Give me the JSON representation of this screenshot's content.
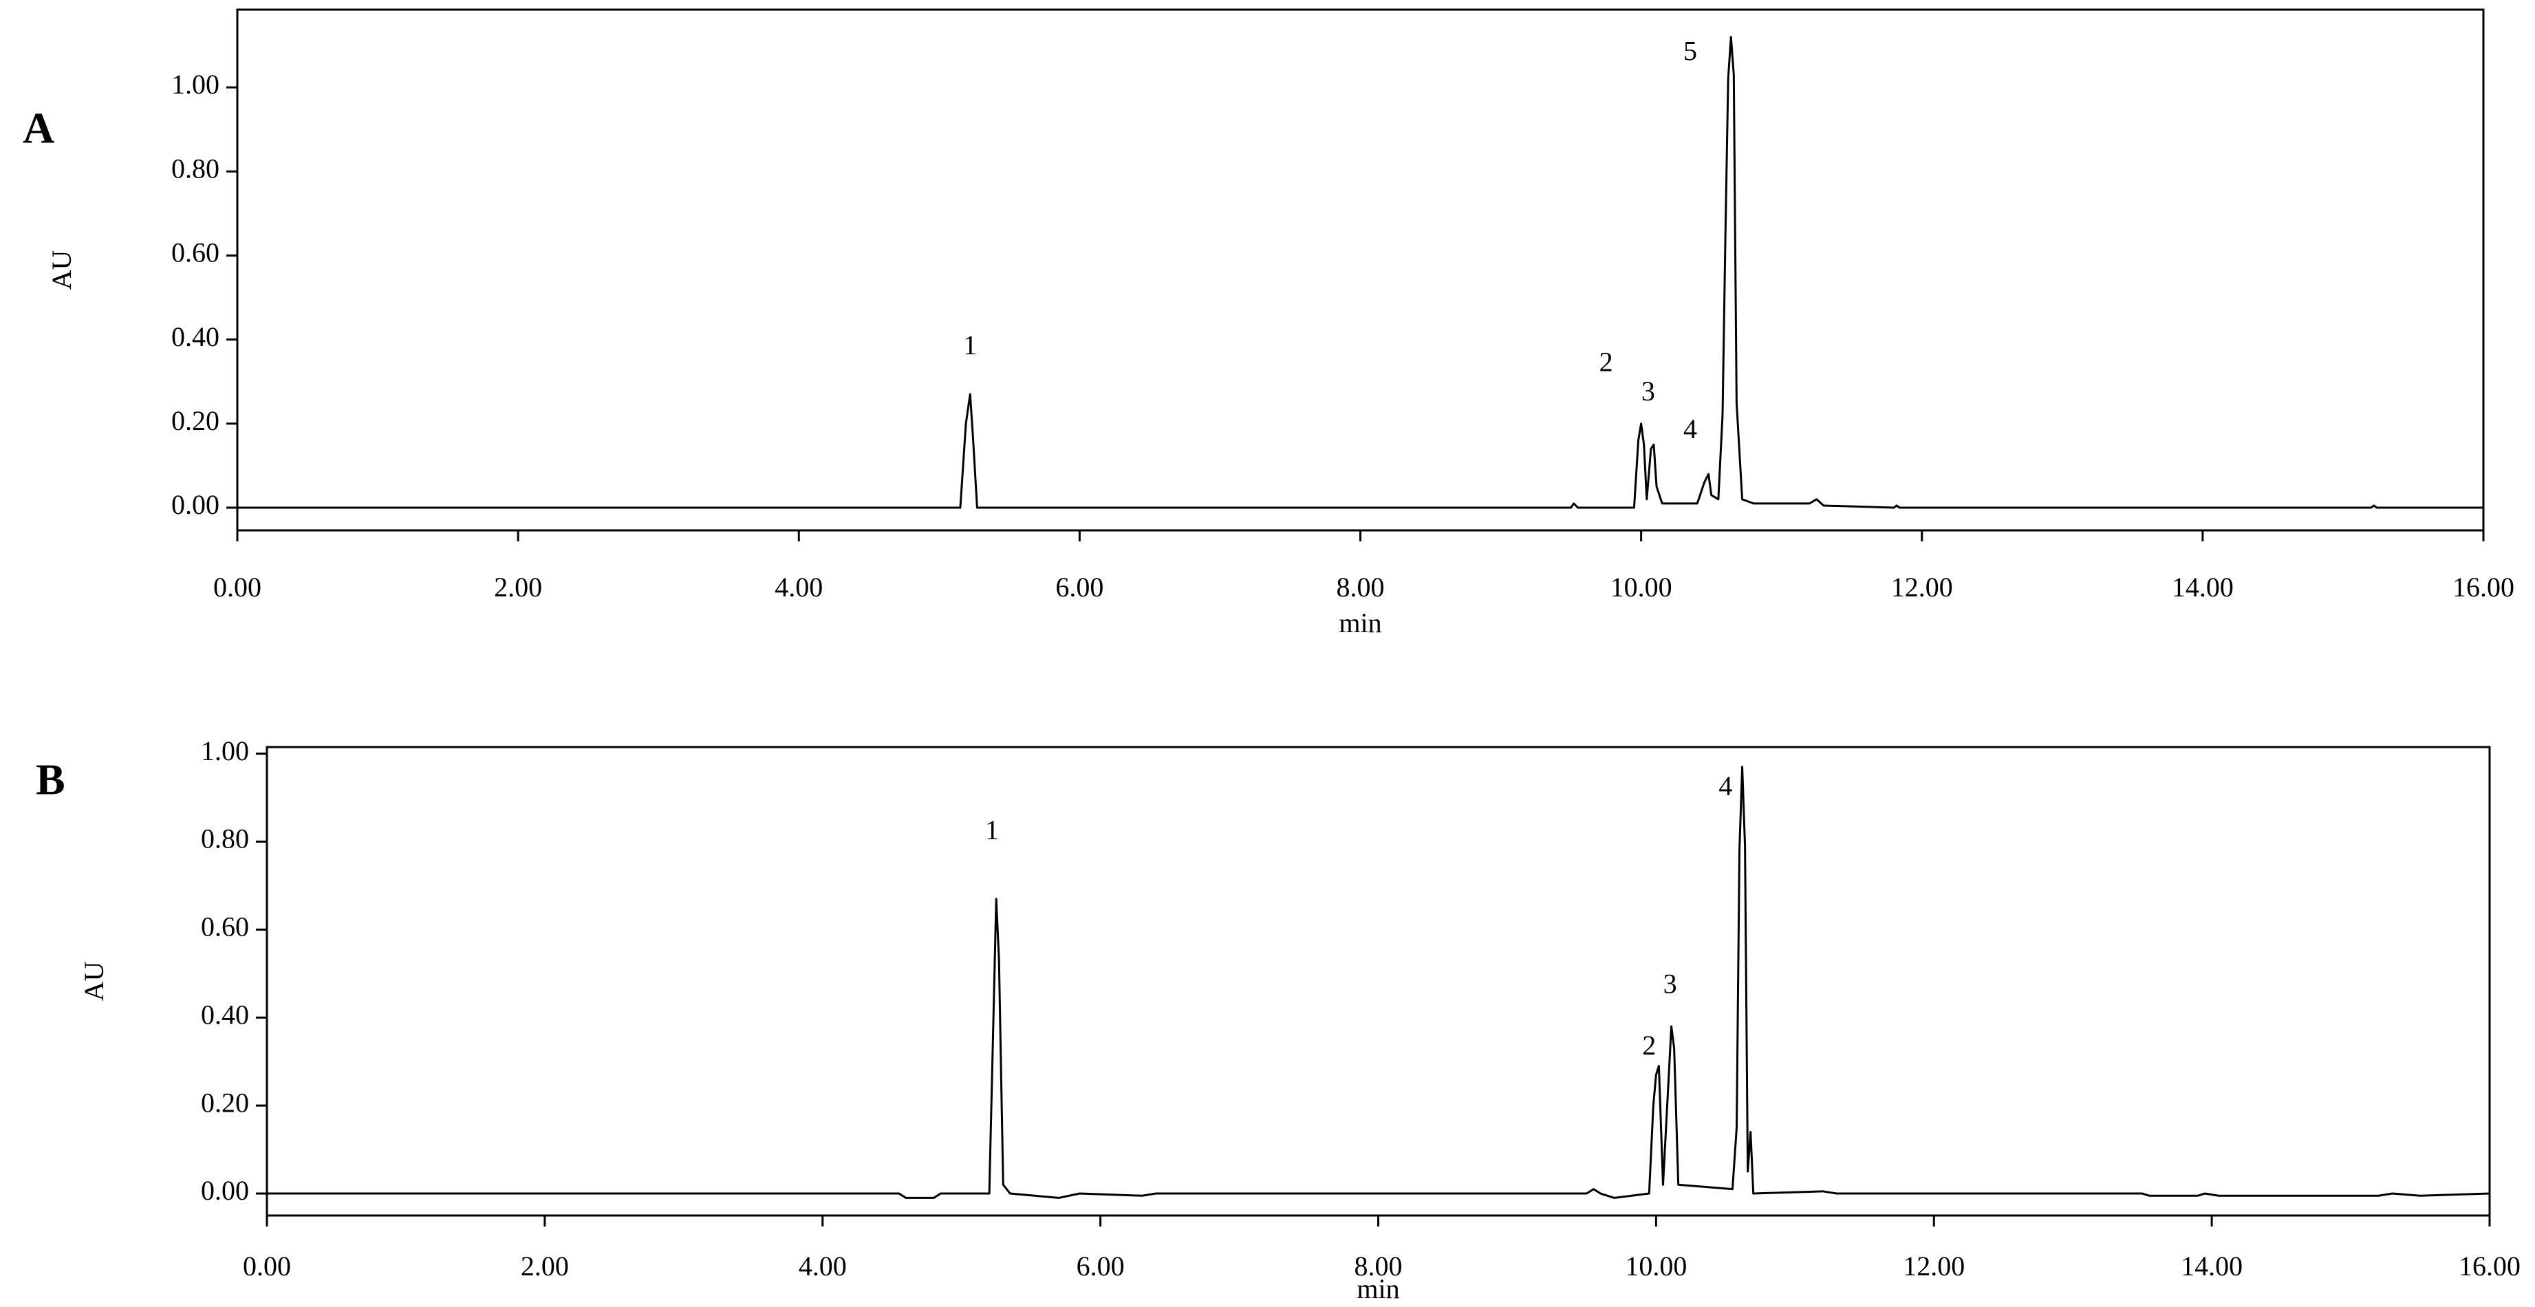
{
  "chart_data": [
    {
      "type": "line",
      "panel_label": "A",
      "xlabel": "min",
      "ylabel": "AU",
      "color": "#000000",
      "xlim": [
        0,
        16
      ],
      "ylim": [
        -0.054,
        1.185
      ],
      "xticks": [
        {
          "value": 0,
          "label": "0.00"
        },
        {
          "value": 2,
          "label": "2.00"
        },
        {
          "value": 4,
          "label": "4.00"
        },
        {
          "value": 6,
          "label": "6.00"
        },
        {
          "value": 8,
          "label": "8.00"
        },
        {
          "value": 10,
          "label": "10.00"
        },
        {
          "value": 12,
          "label": "12.00"
        },
        {
          "value": 14,
          "label": "14.00"
        },
        {
          "value": 16,
          "label": "16.00"
        }
      ],
      "yticks": [
        {
          "value": 0,
          "label": "0.00"
        },
        {
          "value": 0.2,
          "label": "0.20"
        },
        {
          "value": 0.4,
          "label": "0.40"
        },
        {
          "value": 0.6,
          "label": "0.60"
        },
        {
          "value": 0.8,
          "label": "0.80"
        },
        {
          "value": 1,
          "label": "1.00"
        }
      ],
      "x": [
        0,
        5.15,
        5.19,
        5.22,
        5.24,
        5.27,
        9.5,
        9.52,
        9.55,
        9.95,
        9.98,
        10.0,
        10.02,
        10.04,
        10.07,
        10.09,
        10.11,
        10.15,
        10.4,
        10.45,
        10.48,
        10.5,
        10.55,
        10.58,
        10.6,
        10.62,
        10.64,
        10.66,
        10.68,
        10.72,
        10.8,
        11.2,
        11.25,
        11.3,
        11.8,
        11.82,
        11.84,
        15.2,
        15.22,
        15.24,
        16
      ],
      "values": [
        0,
        0,
        0.2,
        0.27,
        0.17,
        0,
        0,
        0.01,
        0,
        0,
        0.16,
        0.2,
        0.15,
        0.02,
        0.14,
        0.15,
        0.05,
        0.01,
        0.01,
        0.06,
        0.08,
        0.03,
        0.02,
        0.22,
        0.64,
        1.02,
        1.12,
        1.03,
        0.25,
        0.02,
        0.01,
        0.01,
        0.02,
        0.005,
        0,
        0.005,
        0,
        0,
        0.005,
        0,
        0
      ],
      "annotations": [
        {
          "text": "1",
          "x": 5.22,
          "y": 0.38
        },
        {
          "text": "2",
          "x": 9.75,
          "y": 0.34
        },
        {
          "text": "3",
          "x": 10.05,
          "y": 0.27
        },
        {
          "text": "4",
          "x": 10.35,
          "y": 0.18
        },
        {
          "text": "5",
          "x": 10.35,
          "y": 1.08
        }
      ]
    },
    {
      "type": "line",
      "panel_label": "B",
      "xlabel": "min",
      "ylabel": "AU",
      "color": "#000000",
      "xlim": [
        0,
        16
      ],
      "ylim": [
        -0.05,
        1.015
      ],
      "xticks": [
        {
          "value": 0,
          "label": "0.00"
        },
        {
          "value": 2,
          "label": "2.00"
        },
        {
          "value": 4,
          "label": "4.00"
        },
        {
          "value": 6,
          "label": "6.00"
        },
        {
          "value": 8,
          "label": "8.00"
        },
        {
          "value": 10,
          "label": "10.00"
        },
        {
          "value": 12,
          "label": "12.00"
        },
        {
          "value": 14,
          "label": "14.00"
        },
        {
          "value": 16,
          "label": "16.00"
        }
      ],
      "yticks": [
        {
          "value": 0,
          "label": "0.00"
        },
        {
          "value": 0.2,
          "label": "0.20"
        },
        {
          "value": 0.4,
          "label": "0.40"
        },
        {
          "value": 0.6,
          "label": "0.60"
        },
        {
          "value": 0.8,
          "label": "0.80"
        },
        {
          "value": 1,
          "label": "1.00"
        }
      ],
      "x": [
        0,
        4.55,
        4.6,
        4.8,
        4.85,
        5.2,
        5.23,
        5.25,
        5.27,
        5.3,
        5.35,
        5.7,
        5.85,
        6.3,
        6.4,
        9.5,
        9.55,
        9.6,
        9.7,
        9.95,
        9.98,
        10.0,
        10.02,
        10.05,
        10.08,
        10.11,
        10.13,
        10.16,
        10.55,
        10.58,
        10.6,
        10.62,
        10.64,
        10.66,
        10.68,
        10.7,
        11.2,
        11.3,
        13.5,
        13.55,
        13.9,
        13.95,
        14.05,
        15.2,
        15.3,
        15.5,
        16
      ],
      "values": [
        0,
        0,
        -0.01,
        -0.01,
        0,
        0,
        0.4,
        0.67,
        0.53,
        0.02,
        0,
        -0.01,
        0,
        -0.005,
        0,
        0,
        0.01,
        0,
        -0.01,
        0,
        0.2,
        0.27,
        0.29,
        0.02,
        0.2,
        0.38,
        0.33,
        0.02,
        0.01,
        0.15,
        0.78,
        0.97,
        0.79,
        0.05,
        0.14,
        0,
        0.005,
        0,
        0,
        -0.005,
        -0.005,
        0,
        -0.005,
        -0.005,
        0,
        -0.005,
        0
      ],
      "annotations": [
        {
          "text": "1",
          "x": 5.22,
          "y": 0.82
        },
        {
          "text": "2",
          "x": 9.95,
          "y": 0.33
        },
        {
          "text": "3",
          "x": 10.1,
          "y": 0.47
        },
        {
          "text": "4",
          "x": 10.5,
          "y": 0.92
        }
      ]
    }
  ]
}
